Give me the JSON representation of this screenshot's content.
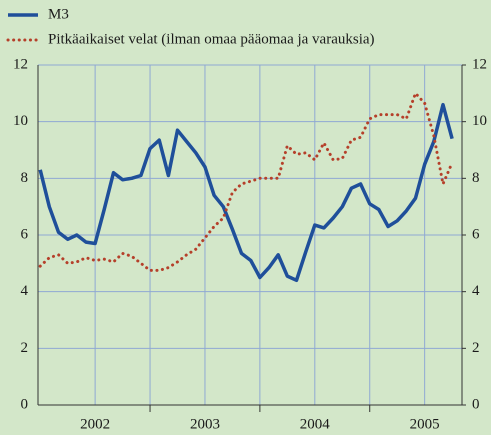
{
  "chart_data": {
    "type": "line",
    "x": [
      2002,
      2002.083,
      2002.167,
      2002.25,
      2002.333,
      2002.417,
      2002.5,
      2002.583,
      2002.667,
      2002.75,
      2002.833,
      2002.917,
      2003,
      2003.083,
      2003.167,
      2003.25,
      2003.333,
      2003.417,
      2003.5,
      2003.583,
      2003.667,
      2003.75,
      2003.833,
      2003.917,
      2004,
      2004.083,
      2004.167,
      2004.25,
      2004.333,
      2004.417,
      2004.5,
      2004.583,
      2004.667,
      2004.75,
      2004.833,
      2004.917,
      2005,
      2005.083,
      2005.167,
      2005.25,
      2005.333,
      2005.417,
      2005.5,
      2005.583,
      2005.667,
      2005.75
    ],
    "series": [
      {
        "name": "M3",
        "color": "#1f4f9a",
        "style": "solid",
        "values": [
          8.3,
          7.0,
          6.1,
          5.85,
          6.0,
          5.75,
          5.7,
          6.9,
          8.2,
          7.95,
          8.0,
          8.1,
          9.05,
          9.35,
          8.1,
          9.7,
          9.3,
          8.9,
          8.4,
          7.4,
          7.0,
          6.2,
          5.35,
          5.1,
          4.5,
          4.85,
          5.3,
          4.55,
          4.4,
          5.4,
          6.35,
          6.25,
          6.6,
          7.0,
          7.65,
          7.8,
          7.1,
          6.9,
          6.3,
          6.5,
          6.85,
          7.3,
          8.5,
          9.3,
          10.6,
          9.4
        ]
      },
      {
        "name": "Pitkäaikaiset velat (ilman omaa pääomaa ja varauksia)",
        "color": "#b5402a",
        "style": "dotted",
        "values": [
          4.9,
          5.2,
          5.3,
          5.0,
          5.05,
          5.2,
          5.1,
          5.15,
          5.05,
          5.35,
          5.25,
          5.0,
          4.75,
          4.75,
          4.85,
          5.05,
          5.3,
          5.5,
          5.9,
          6.3,
          6.6,
          7.5,
          7.8,
          7.9,
          8.0,
          8.0,
          8.0,
          9.15,
          8.85,
          8.9,
          8.65,
          9.25,
          8.65,
          8.7,
          9.35,
          9.45,
          10.1,
          10.25,
          10.25,
          10.25,
          10.1,
          11.0,
          10.65,
          9.5,
          7.8,
          8.55
        ]
      }
    ],
    "xlim": [
      2001.98,
      2005.84
    ],
    "xticks": [
      {
        "value": 2002.5,
        "label": "2002"
      },
      {
        "value": 2003.5,
        "label": "2003"
      },
      {
        "value": 2004.5,
        "label": "2004"
      },
      {
        "value": 2005.5,
        "label": "2005"
      }
    ],
    "year_boundaries": [
      2003,
      2004,
      2005
    ],
    "ylim": [
      0,
      12
    ],
    "yticks": [
      0,
      2,
      4,
      6,
      8,
      10,
      12
    ],
    "y2lim": [
      0,
      12
    ],
    "y2ticks": [
      0,
      2,
      4,
      6,
      8,
      10,
      12
    ],
    "grid": true,
    "legend": "top-left"
  }
}
